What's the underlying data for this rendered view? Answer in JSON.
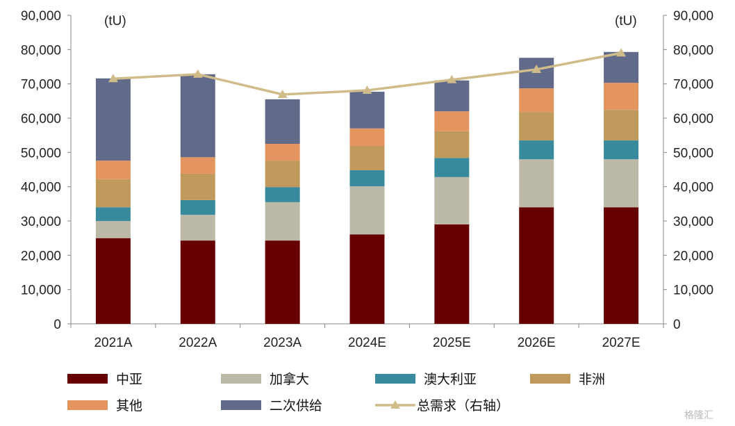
{
  "chart_data": {
    "type": "bar",
    "stacked": true,
    "categories": [
      "2021A",
      "2022A",
      "2023A",
      "2024E",
      "2025E",
      "2026E",
      "2027E"
    ],
    "unit_left": "(tU)",
    "unit_right": "(tU)",
    "ylim": [
      0,
      90000
    ],
    "yticks": [
      "0",
      "10,000",
      "20,000",
      "30,000",
      "40,000",
      "50,000",
      "60,000",
      "70,000",
      "80,000",
      "90,000"
    ],
    "y2lim": [
      0,
      90000
    ],
    "series": [
      {
        "name": "中亚",
        "color": "#660000",
        "values": [
          25000,
          24300,
          24300,
          26100,
          29000,
          34000,
          34000
        ]
      },
      {
        "name": "加拿大",
        "color": "#bcb9a8",
        "values": [
          5000,
          7500,
          11200,
          14000,
          13800,
          14000,
          14000
        ]
      },
      {
        "name": "澳大利亚",
        "color": "#3a8a9e",
        "values": [
          4000,
          4300,
          4400,
          4700,
          5600,
          5500,
          5500
        ]
      },
      {
        "name": "非洲",
        "color": "#c09a5c",
        "values": [
          8200,
          7700,
          7700,
          7100,
          7800,
          8300,
          8900
        ]
      },
      {
        "name": "其他",
        "color": "#e4955f",
        "values": [
          5400,
          4800,
          4900,
          5100,
          5800,
          6900,
          7900
        ]
      },
      {
        "name": "二次供给",
        "color": "#626a8a",
        "values": [
          24000,
          24200,
          13000,
          10700,
          9000,
          8900,
          9000
        ]
      }
    ],
    "line_series": {
      "name": "总需求（右轴）",
      "color": "#cfbc8a",
      "axis": "right",
      "values": [
        71500,
        72800,
        66900,
        68100,
        71200,
        74200,
        79000
      ]
    },
    "legend_position": "bottom"
  },
  "watermark": "格隆汇"
}
